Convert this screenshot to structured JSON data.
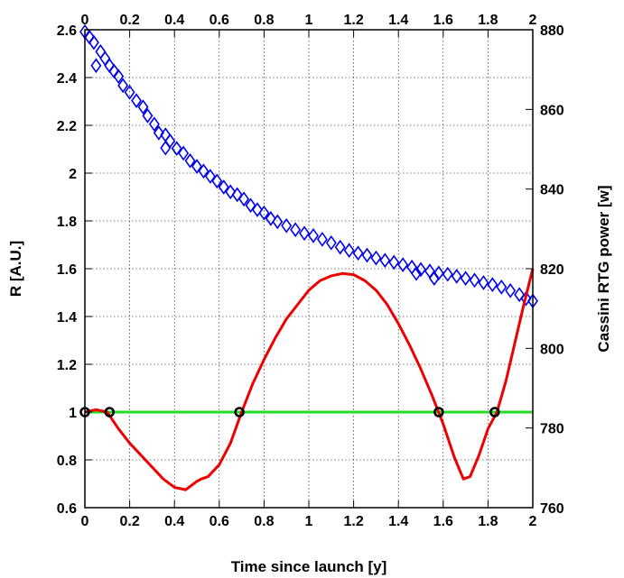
{
  "chart_data": {
    "type": "scatter",
    "xlabel": "Time since launch [y]",
    "ylabel": "R [A.U.]",
    "y2label": "Cassini RTG power [w]",
    "xlim": [
      0,
      2
    ],
    "ylim": [
      0.6,
      2.6
    ],
    "y2lim": [
      760,
      880
    ],
    "x_ticks": [
      "0",
      "0.2",
      "0.4",
      "0.6",
      "0.8",
      "1",
      "1.2",
      "1.4",
      "1.6",
      "1.8",
      "2"
    ],
    "y_ticks": [
      "0.6",
      "0.8",
      "1",
      "1.2",
      "1.4",
      "1.6",
      "1.8",
      "2",
      "2.2",
      "2.4",
      "2.6"
    ],
    "y2_ticks": [
      "760",
      "780",
      "800",
      "820",
      "840",
      "860",
      "880"
    ],
    "grid": true,
    "colors": {
      "power": "#0000ee",
      "distance": "#ee0000",
      "reference": "#22dd22",
      "markers": "#000000"
    },
    "series": [
      {
        "type": "scatter",
        "axis": "right",
        "marker": "diamond",
        "points": [
          [
            0.0,
            879.5
          ],
          [
            0.02,
            878.2
          ],
          [
            0.04,
            876.8
          ],
          [
            0.05,
            871.0
          ],
          [
            0.07,
            874.5
          ],
          [
            0.09,
            872.8
          ],
          [
            0.11,
            871.0
          ],
          [
            0.13,
            869.6
          ],
          [
            0.15,
            868.3
          ],
          [
            0.17,
            866.0
          ],
          [
            0.2,
            864.3
          ],
          [
            0.23,
            862.2
          ],
          [
            0.26,
            860.6
          ],
          [
            0.28,
            858.4
          ],
          [
            0.31,
            856.3
          ],
          [
            0.33,
            854.1
          ],
          [
            0.36,
            853.6
          ],
          [
            0.36,
            850.3
          ],
          [
            0.38,
            852.1
          ],
          [
            0.41,
            850.2
          ],
          [
            0.44,
            849.0
          ],
          [
            0.47,
            847.1
          ],
          [
            0.5,
            845.7
          ],
          [
            0.53,
            844.5
          ],
          [
            0.56,
            843.2
          ],
          [
            0.59,
            842.0
          ],
          [
            0.62,
            840.5
          ],
          [
            0.65,
            839.3
          ],
          [
            0.68,
            838.6
          ],
          [
            0.71,
            837.5
          ],
          [
            0.74,
            835.9
          ],
          [
            0.77,
            834.8
          ],
          [
            0.8,
            834.0
          ],
          [
            0.83,
            832.6
          ],
          [
            0.86,
            831.8
          ],
          [
            0.9,
            830.8
          ],
          [
            0.94,
            829.8
          ],
          [
            0.98,
            828.9
          ],
          [
            1.02,
            828.3
          ],
          [
            1.06,
            827.4
          ],
          [
            1.1,
            826.5
          ],
          [
            1.14,
            825.4
          ],
          [
            1.18,
            824.6
          ],
          [
            1.22,
            823.9
          ],
          [
            1.26,
            823.4
          ],
          [
            1.3,
            822.7
          ],
          [
            1.34,
            822.1
          ],
          [
            1.38,
            821.6
          ],
          [
            1.42,
            821.0
          ],
          [
            1.46,
            820.4
          ],
          [
            1.48,
            818.8
          ],
          [
            1.5,
            819.8
          ],
          [
            1.54,
            819.4
          ],
          [
            1.56,
            817.6
          ],
          [
            1.58,
            818.9
          ],
          [
            1.62,
            818.6
          ],
          [
            1.66,
            818.1
          ],
          [
            1.7,
            817.6
          ],
          [
            1.74,
            817.1
          ],
          [
            1.78,
            816.5
          ],
          [
            1.82,
            816.0
          ],
          [
            1.86,
            815.4
          ],
          [
            1.9,
            814.5
          ],
          [
            1.94,
            813.5
          ],
          [
            1.97,
            812.5
          ],
          [
            2.0,
            811.9
          ]
        ]
      },
      {
        "type": "line",
        "axis": "left",
        "points": [
          [
            0.0,
            1.0
          ],
          [
            0.05,
            1.01
          ],
          [
            0.1,
            1.0
          ],
          [
            0.15,
            0.93
          ],
          [
            0.2,
            0.87
          ],
          [
            0.25,
            0.82
          ],
          [
            0.3,
            0.77
          ],
          [
            0.35,
            0.72
          ],
          [
            0.4,
            0.685
          ],
          [
            0.45,
            0.675
          ],
          [
            0.5,
            0.71
          ],
          [
            0.52,
            0.72
          ],
          [
            0.55,
            0.73
          ],
          [
            0.6,
            0.78
          ],
          [
            0.65,
            0.87
          ],
          [
            0.7,
            1.0
          ],
          [
            0.75,
            1.12
          ],
          [
            0.8,
            1.22
          ],
          [
            0.85,
            1.31
          ],
          [
            0.9,
            1.39
          ],
          [
            0.95,
            1.45
          ],
          [
            1.0,
            1.51
          ],
          [
            1.05,
            1.55
          ],
          [
            1.1,
            1.57
          ],
          [
            1.15,
            1.58
          ],
          [
            1.2,
            1.575
          ],
          [
            1.25,
            1.55
          ],
          [
            1.3,
            1.51
          ],
          [
            1.35,
            1.45
          ],
          [
            1.4,
            1.37
          ],
          [
            1.45,
            1.28
          ],
          [
            1.5,
            1.18
          ],
          [
            1.55,
            1.07
          ],
          [
            1.6,
            0.95
          ],
          [
            1.65,
            0.81
          ],
          [
            1.69,
            0.72
          ],
          [
            1.72,
            0.73
          ],
          [
            1.76,
            0.82
          ],
          [
            1.8,
            0.93
          ],
          [
            1.84,
            1.0
          ],
          [
            1.88,
            1.13
          ],
          [
            1.92,
            1.29
          ],
          [
            1.96,
            1.45
          ],
          [
            2.0,
            1.6
          ]
        ]
      },
      {
        "type": "line",
        "axis": "left",
        "points": [
          [
            0,
            1
          ],
          [
            2,
            1
          ]
        ]
      },
      {
        "type": "markers",
        "axis": "left",
        "marker": "circle",
        "points": [
          [
            0.0,
            1.0
          ],
          [
            0.11,
            1.0
          ],
          [
            0.69,
            1.0
          ],
          [
            1.58,
            1.0
          ],
          [
            1.83,
            1.0
          ]
        ]
      }
    ]
  }
}
